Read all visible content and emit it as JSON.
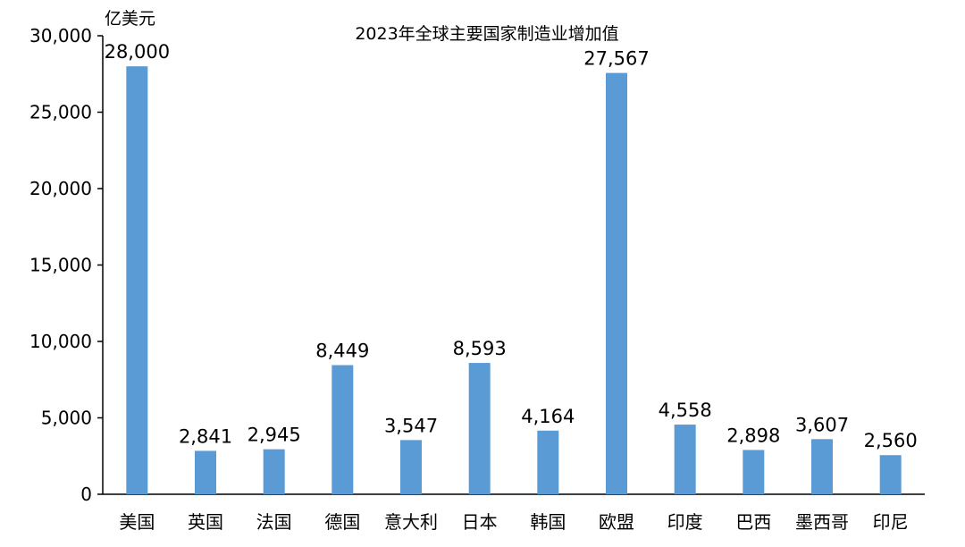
{
  "chart_data": {
    "type": "bar",
    "title": "2023年全球主要国家制造业增加值",
    "ylabel": "亿美元",
    "xlabel": "",
    "ylim": [
      0,
      30000
    ],
    "yticks": [
      0,
      5000,
      10000,
      15000,
      20000,
      25000,
      30000
    ],
    "ytick_labels": [
      "0",
      "5,000",
      "10,000",
      "15,000",
      "20,000",
      "25,000",
      "30,000"
    ],
    "categories": [
      "美国",
      "英国",
      "法国",
      "德国",
      "意大利",
      "日本",
      "韩国",
      "欧盟",
      "印度",
      "巴西",
      "墨西哥",
      "印尼"
    ],
    "values": [
      28000,
      2841,
      2945,
      8449,
      3547,
      8593,
      4164,
      27567,
      4558,
      2898,
      3607,
      2560
    ],
    "value_labels": [
      "28,000",
      "2,841",
      "2,945",
      "8,449",
      "3,547",
      "8,593",
      "4,164",
      "27,567",
      "4,558",
      "2,898",
      "3,607",
      "2,560"
    ],
    "grid": false,
    "legend": "none",
    "bar_color": "#5B9BD5",
    "axis_color": "#000000"
  }
}
